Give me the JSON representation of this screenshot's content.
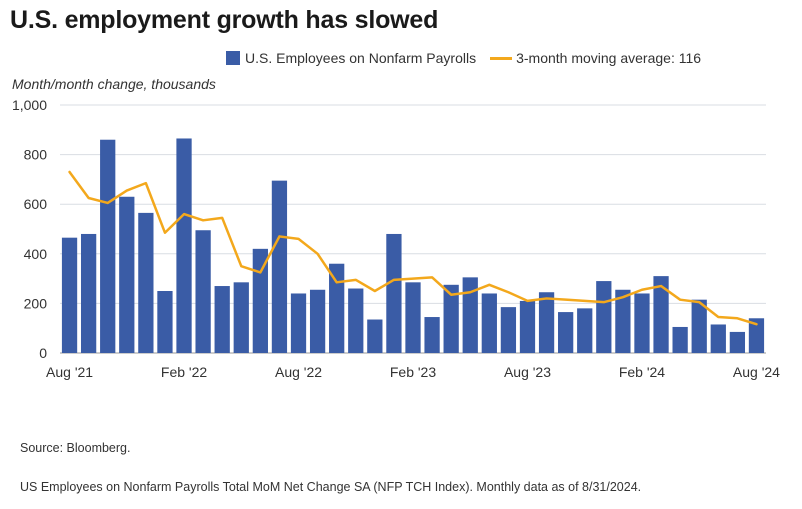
{
  "title": "U.S. employment growth has slowed",
  "legend": {
    "bars_label": "U.S. Employees on Nonfarm Payrolls",
    "line_label": "3-month moving average: 116"
  },
  "chart_data": {
    "type": "bar",
    "ylabel": "Month/month change, thousands",
    "ylim": [
      0,
      1000
    ],
    "yticks": [
      "0",
      "200",
      "400",
      "600",
      "800",
      "1,000"
    ],
    "x_tick_labels": [
      {
        "index": 0,
        "label": "Aug '21"
      },
      {
        "index": 6,
        "label": "Feb '22"
      },
      {
        "index": 12,
        "label": "Aug '22"
      },
      {
        "index": 18,
        "label": "Feb '23"
      },
      {
        "index": 24,
        "label": "Aug '23"
      },
      {
        "index": 30,
        "label": "Feb '24"
      },
      {
        "index": 36,
        "label": "Aug '24"
      }
    ],
    "categories": [
      "Aug '21",
      "Sep '21",
      "Oct '21",
      "Nov '21",
      "Dec '21",
      "Jan '22",
      "Feb '22",
      "Mar '22",
      "Apr '22",
      "May '22",
      "Jun '22",
      "Jul '22",
      "Aug '22",
      "Sep '22",
      "Oct '22",
      "Nov '22",
      "Dec '22",
      "Jan '23",
      "Feb '23",
      "Mar '23",
      "Apr '23",
      "May '23",
      "Jun '23",
      "Jul '23",
      "Aug '23",
      "Sep '23",
      "Oct '23",
      "Nov '23",
      "Dec '23",
      "Jan '24",
      "Feb '24",
      "Mar '24",
      "Apr '24",
      "May '24",
      "Jun '24",
      "Jul '24",
      "Aug '24"
    ],
    "series": [
      {
        "name": "U.S. Employees on Nonfarm Payrolls",
        "type": "bar",
        "color": "#3a5ca6",
        "values": [
          465,
          480,
          860,
          630,
          565,
          250,
          865,
          495,
          270,
          285,
          420,
          695,
          240,
          255,
          360,
          260,
          135,
          480,
          285,
          145,
          275,
          305,
          240,
          185,
          210,
          245,
          165,
          180,
          290,
          255,
          240,
          310,
          105,
          215,
          115,
          85,
          140
        ]
      },
      {
        "name": "3-month moving average: 116",
        "type": "line",
        "color": "#f3a81c",
        "values": [
          730,
          625,
          605,
          655,
          685,
          485,
          560,
          535,
          545,
          350,
          325,
          470,
          460,
          400,
          285,
          295,
          250,
          295,
          300,
          305,
          235,
          245,
          275,
          245,
          210,
          220,
          215,
          210,
          205,
          225,
          255,
          270,
          215,
          205,
          145,
          140,
          116
        ]
      }
    ]
  },
  "source": "Source: Bloomberg.",
  "footnote": "US Employees on Nonfarm Payrolls Total MoM Net Change SA (NFP TCH Index). Monthly data as of 8/31/2024."
}
